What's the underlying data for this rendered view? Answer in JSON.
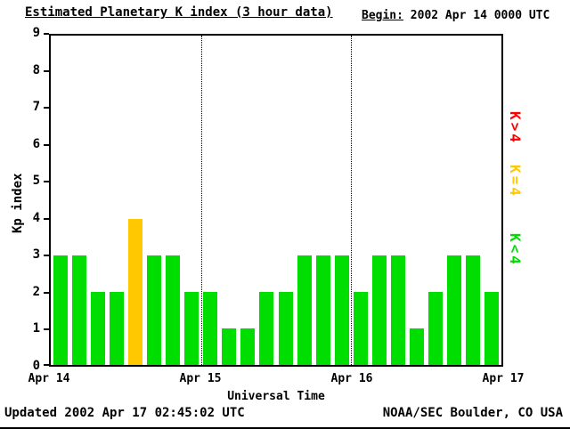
{
  "title": "Estimated Planetary K index (3 hour data)",
  "begin": {
    "label": "Begin:",
    "value": "2002 Apr 14 0000 UTC"
  },
  "footer": {
    "updated": "Updated 2002 Apr 17 02:45:02 UTC",
    "credit": "NOAA/SEC Boulder, CO USA"
  },
  "legend": [
    {
      "label": "K>4",
      "color": "#ff0000"
    },
    {
      "label": "K=4",
      "color": "#ffc800"
    },
    {
      "label": "K<4",
      "color": "#00dd00"
    }
  ],
  "chart_data": {
    "type": "bar",
    "title": "Estimated Planetary K index (3 hour data)",
    "xlabel": "Universal Time",
    "ylabel": "Kp index",
    "ylim": [
      0,
      9
    ],
    "yticks": [
      0,
      1,
      2,
      3,
      4,
      5,
      6,
      7,
      8,
      9
    ],
    "xtick_labels": [
      "Apr 14",
      "Apr 15",
      "Apr 16",
      "Apr 17"
    ],
    "bar_interval_hours": 3,
    "values": [
      3,
      3,
      2,
      2,
      4,
      3,
      3,
      2,
      2,
      1,
      1,
      2,
      2,
      3,
      3,
      3,
      2,
      3,
      3,
      1,
      2,
      3,
      3,
      2
    ],
    "colors": {
      "below4": "#00dd00",
      "equal4": "#ffc800",
      "above4": "#ff0000"
    },
    "grid_every_bars": 8,
    "grid_style": "dotted vertical lines at day boundaries",
    "legend_position": "right"
  }
}
